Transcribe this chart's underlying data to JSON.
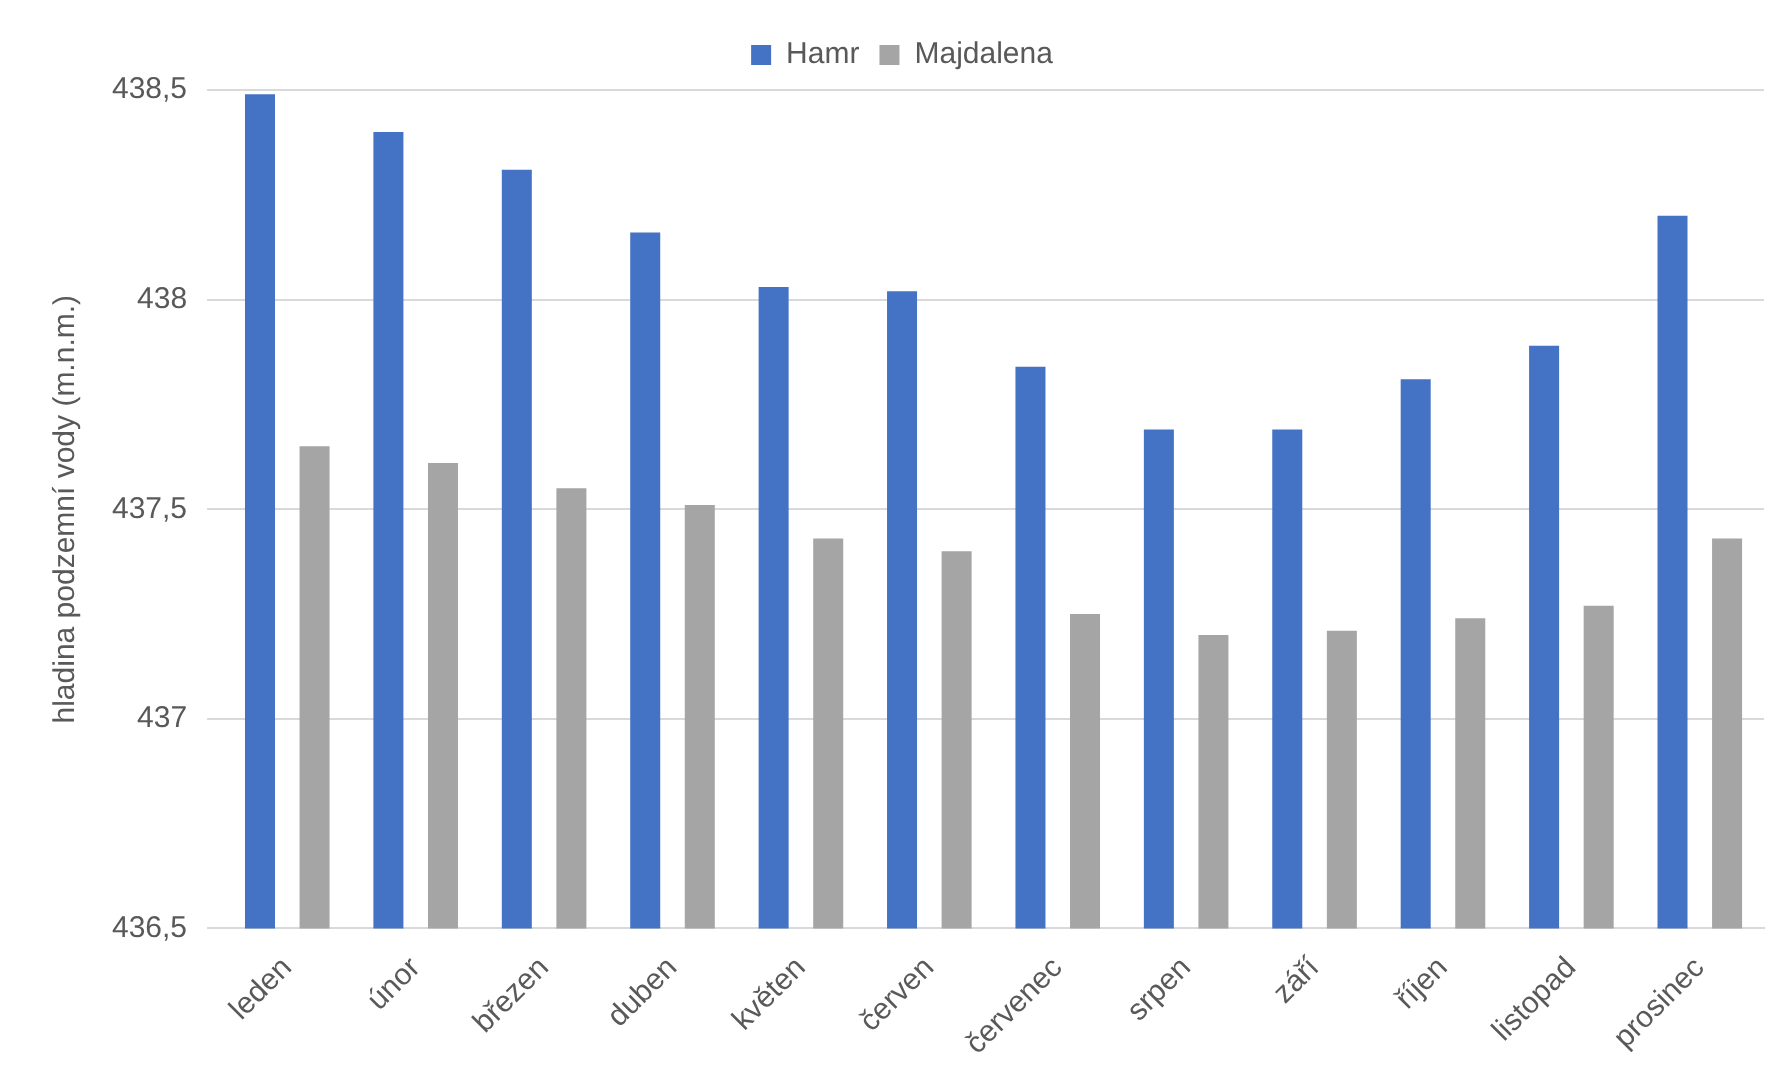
{
  "chart_data": {
    "type": "bar",
    "ylabel": "hladina podzemní vody (m.n.m.)",
    "categories": [
      "leden",
      "únor",
      "březen",
      "duben",
      "květen",
      "červen",
      "červenec",
      "srpen",
      "září",
      "říjen",
      "listopad",
      "prosinec"
    ],
    "series": [
      {
        "name": "Hamr",
        "color": "#4472c4",
        "values": [
          438.49,
          438.4,
          438.31,
          438.16,
          438.03,
          438.02,
          437.84,
          437.69,
          437.69,
          437.81,
          437.89,
          438.2
        ]
      },
      {
        "name": "Majdalena",
        "color": "#a5a5a5",
        "values": [
          437.65,
          437.61,
          437.55,
          437.51,
          437.43,
          437.4,
          437.25,
          437.2,
          437.21,
          437.24,
          437.27,
          437.43
        ]
      }
    ],
    "ylim": [
      436.5,
      438.5
    ],
    "yticks": [
      {
        "value": 436.5,
        "label": "436,5"
      },
      {
        "value": 437,
        "label": "437"
      },
      {
        "value": 437.5,
        "label": "437,5"
      },
      {
        "value": 438,
        "label": "438"
      },
      {
        "value": 438.5,
        "label": "438,5"
      }
    ],
    "grid": "y",
    "legend": "top"
  }
}
